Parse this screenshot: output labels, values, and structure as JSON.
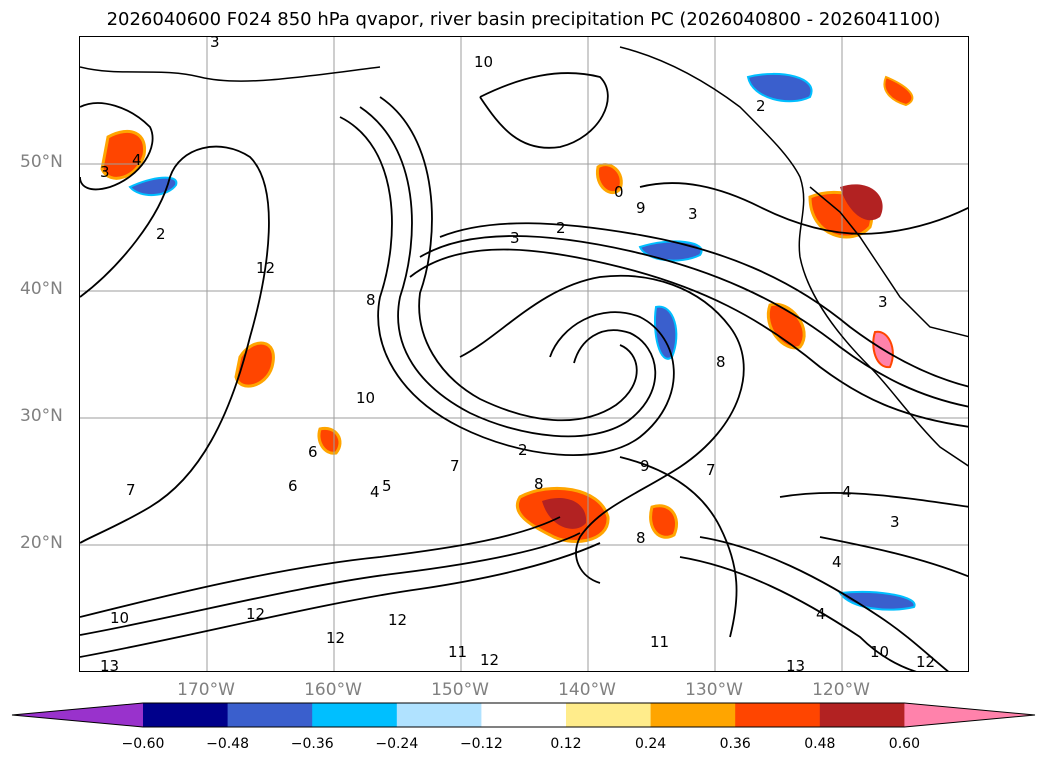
{
  "title": "2026040600 F024 850 hPa qvapor, river basin precipitation PC (2026040800 - 2026041100)",
  "map": {
    "projection": "equirectangular",
    "lon_range": [
      "180°",
      "110°W"
    ],
    "lat_range": [
      "10°N",
      "60°N"
    ],
    "lat_labels": [
      "50°N",
      "40°N",
      "30°N",
      "20°N"
    ],
    "lon_labels": [
      "170°W",
      "160°W",
      "150°W",
      "140°W",
      "130°W",
      "120°W"
    ],
    "gridlines": true,
    "gridline_color": "#9e9e9e",
    "contour_color": "#000000",
    "contour_labels": [
      "3",
      "10",
      "2",
      "3",
      "4",
      "2",
      "12",
      "3",
      "0",
      "8",
      "2",
      "3",
      "9",
      "10",
      "7",
      "2",
      "9",
      "6",
      "6",
      "5",
      "4",
      "12",
      "12",
      "12",
      "11",
      "12",
      "13",
      "13",
      "3",
      "4",
      "8",
      "8",
      "7",
      "8",
      "7",
      "4",
      "3",
      "10",
      "10",
      "11",
      "12",
      "4"
    ]
  },
  "colorbar": {
    "ticks": [
      "−0.60",
      "−0.48",
      "−0.36",
      "−0.24",
      "−0.12",
      "0.12",
      "0.24",
      "0.36",
      "0.48",
      "0.60"
    ],
    "colors": [
      "#9932cc",
      "#00008b",
      "#3a5fcd",
      "#00bfff",
      "#b0e2ff",
      "#ffffff",
      "#ffec8b",
      "#ffa500",
      "#ff4500",
      "#b22222",
      "#ff82ab"
    ],
    "extend": "both"
  }
}
